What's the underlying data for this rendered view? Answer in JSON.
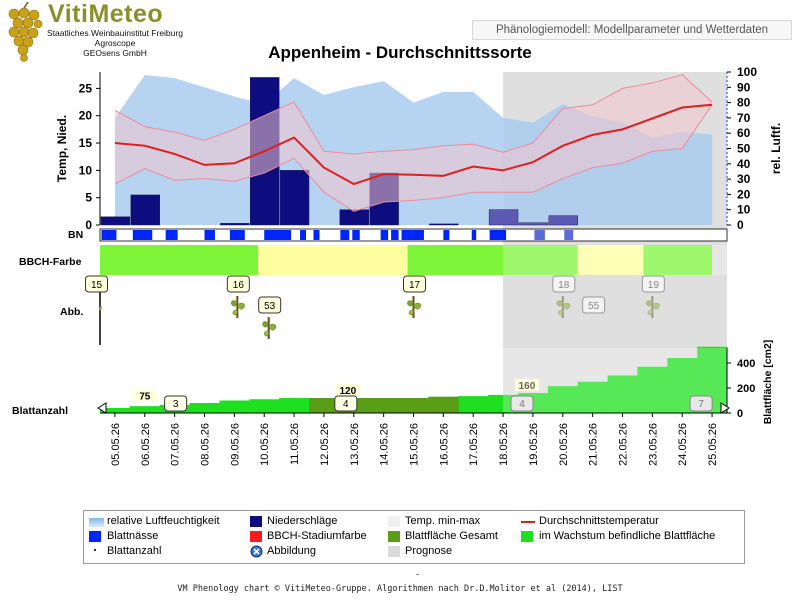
{
  "header": {
    "logo_title": "VitiMeteo",
    "logo_lines": [
      "Staatliches Weinbauinstitut Freiburg",
      "Agroscope",
      "GEOsens GmbH"
    ],
    "tab_label": "Phänologiemodell: Modellparameter und Wetterdaten"
  },
  "footer": {
    "dash": "-",
    "credit": "VM Phenology chart © VitiMeteo-Gruppe. Algorithmen nach Dr.D.Molitor et al (2014), LIST"
  },
  "colors": {
    "humidity": "#a9cdf0",
    "precip": "#0d0d80",
    "precip_forecast": "#5c5ab4",
    "temp_band": "#f2c4cc",
    "temp_line": "#e01e1e",
    "bbch_green": "#7ff53a",
    "bbch_yellow": "#ffffa0",
    "leaf_total": "#5a9e18",
    "leaf_growing": "#1ee01e",
    "wetness": "#0026ff",
    "forecast_shade": "#d9d9d9"
  },
  "chart_data": {
    "type": "phenology-combined",
    "title": "Appenheim - Durchschnittssorte",
    "dates": [
      "05.05.26",
      "06.05.26",
      "07.05.26",
      "08.05.26",
      "09.05.26",
      "10.05.26",
      "11.05.26",
      "12.05.26",
      "13.05.26",
      "14.05.26",
      "15.05.26",
      "16.05.26",
      "17.05.26",
      "18.05.26",
      "19.05.26",
      "20.05.26",
      "21.05.26",
      "22.05.26",
      "23.05.26",
      "24.05.26",
      "25.05.26"
    ],
    "forecast_start": "18.05.26",
    "axes": {
      "left": {
        "label": "Temp, Nied.",
        "ylim": [
          0,
          28
        ],
        "ticks": [
          0,
          5,
          10,
          15,
          20,
          25
        ]
      },
      "right": {
        "label": "rel. Luftf.",
        "ylim": [
          0,
          100
        ],
        "ticks": [
          0,
          10,
          20,
          30,
          40,
          50,
          60,
          70,
          80,
          90,
          100
        ]
      },
      "leaf_area": {
        "label": "Blattfläche [cm2]",
        "ticks": [
          0,
          200,
          400
        ]
      }
    },
    "humidity": [
      {
        "x": "05.05.26",
        "y": 70
      },
      {
        "x": "06.05.26",
        "y": 98
      },
      {
        "x": "07.05.26",
        "y": 96
      },
      {
        "x": "08.05.26",
        "y": 90
      },
      {
        "x": "09.05.26",
        "y": 84
      },
      {
        "x": "10.05.26",
        "y": 79
      },
      {
        "x": "11.05.26",
        "y": 96
      },
      {
        "x": "12.05.26",
        "y": 85
      },
      {
        "x": "13.05.26",
        "y": 90
      },
      {
        "x": "14.05.26",
        "y": 94
      },
      {
        "x": "15.05.26",
        "y": 80
      },
      {
        "x": "16.05.26",
        "y": 87
      },
      {
        "x": "17.05.26",
        "y": 87
      },
      {
        "x": "18.05.26",
        "y": 70
      },
      {
        "x": "19.05.26",
        "y": 67
      },
      {
        "x": "20.05.26",
        "y": 79
      },
      {
        "x": "21.05.26",
        "y": 71
      },
      {
        "x": "22.05.26",
        "y": 67
      },
      {
        "x": "23.05.26",
        "y": 57
      },
      {
        "x": "24.05.26",
        "y": 61
      },
      {
        "x": "25.05.26",
        "y": 59
      }
    ],
    "precipitation": [
      {
        "date": "05.05.26",
        "value": 1.5
      },
      {
        "date": "06.05.26",
        "value": 5.5
      },
      {
        "date": "09.05.26",
        "value": 0.3
      },
      {
        "date": "10.05.26",
        "value": 27
      },
      {
        "date": "11.05.26",
        "value": 10
      },
      {
        "date": "13.05.26",
        "value": 2.8
      },
      {
        "date": "14.05.26",
        "value": 9.5
      },
      {
        "date": "16.05.26",
        "value": 0.2
      },
      {
        "date": "18.05.26",
        "value": 2.8
      },
      {
        "date": "19.05.26",
        "value": 0.4
      },
      {
        "date": "20.05.26",
        "value": 1.7
      }
    ],
    "temperature": {
      "mean": [
        15,
        14.5,
        13,
        11,
        11.3,
        13.5,
        16,
        10.5,
        7.5,
        9.3,
        9.2,
        9,
        10.7,
        10,
        11.5,
        14.5,
        16.5,
        17.5,
        19.5,
        21.5,
        22
      ],
      "min": [
        7.5,
        10.3,
        8.2,
        8.5,
        8,
        9.5,
        12.2,
        6,
        2.5,
        4.2,
        4.5,
        5,
        6,
        6,
        6,
        8.5,
        10.5,
        11.3,
        13.5,
        14,
        22
      ],
      "max": [
        21,
        18,
        17,
        15.5,
        17.5,
        20,
        22.5,
        13.5,
        13,
        13.5,
        13.8,
        14.5,
        14.8,
        13.3,
        15,
        21.3,
        22,
        25,
        26,
        27.5,
        22.5
      ]
    },
    "leaf_wetness_label": "BN",
    "leaf_wetness_periods": [
      [
        0.05,
        0.55
      ],
      [
        1.1,
        1.75
      ],
      [
        2.2,
        2.6
      ],
      [
        3.5,
        3.85
      ],
      [
        4.35,
        4.85
      ],
      [
        5.5,
        6.4
      ],
      [
        6.7,
        6.9
      ],
      [
        7.15,
        7.35
      ],
      [
        8.05,
        8.35
      ],
      [
        8.45,
        8.7
      ],
      [
        9.4,
        9.65
      ],
      [
        9.75,
        10.0
      ],
      [
        10.1,
        10.85
      ],
      [
        11.5,
        11.7
      ],
      [
        12.45,
        12.6
      ],
      [
        13.05,
        13.6
      ],
      [
        14.55,
        14.9
      ],
      [
        15.55,
        15.85
      ]
    ],
    "bbch_label": "BBCH-Farbe",
    "bbch_segments": [
      {
        "from": 0,
        "to": 5.3,
        "color": "bbch_green"
      },
      {
        "from": 5.3,
        "to": 10.3,
        "color": "bbch_yellow"
      },
      {
        "from": 10.3,
        "to": 16.0,
        "color": "bbch_green"
      },
      {
        "from": 16.0,
        "to": 18.2,
        "color": "bbch_yellow"
      },
      {
        "from": 18.2,
        "to": 20.5,
        "color": "bbch_green"
      }
    ],
    "stages_label": "Abb.",
    "stages": [
      {
        "label": "15",
        "x": -0.15,
        "level": "top",
        "illustration": false
      },
      {
        "label": "16",
        "x": 4.6,
        "level": "top",
        "illustration": true
      },
      {
        "label": "53",
        "x": 5.65,
        "level": "mid",
        "illustration": true
      },
      {
        "label": "17",
        "x": 10.5,
        "level": "top",
        "illustration": true
      },
      {
        "label": "18",
        "x": 15.5,
        "level": "top",
        "illustration": true
      },
      {
        "label": "55",
        "x": 16.5,
        "level": "mid",
        "illustration": false
      },
      {
        "label": "19",
        "x": 18.5,
        "level": "top",
        "illustration": true
      }
    ],
    "leaf_count_label": "Blattanzahl",
    "leaf_total_area": [
      40,
      55,
      65,
      80,
      100,
      110,
      120,
      120,
      120,
      120,
      120,
      130,
      135,
      145,
      160,
      215,
      250,
      300,
      370,
      440,
      530
    ],
    "leaf_growing_steps": [
      {
        "from": 0,
        "to": 7,
        "value": "growing"
      },
      {
        "from": 7,
        "to": 12,
        "value": "total"
      },
      {
        "from": 12,
        "to": 20.5,
        "value": "growing"
      }
    ],
    "leaf_area_labels": [
      {
        "label": "75",
        "x": 1.5,
        "y": 75
      },
      {
        "label": "120",
        "x": 8.3,
        "y": 120
      },
      {
        "label": "160",
        "x": 14.3,
        "y": 160
      }
    ],
    "leaf_count_markers": [
      {
        "label": "3",
        "x": 2.5
      },
      {
        "label": "4",
        "x": 8.2
      },
      {
        "label": "4",
        "x": 14.1
      },
      {
        "label": "7",
        "x": 20.1
      }
    ],
    "legend": [
      {
        "label": "relative Luftfeuchtigkeit",
        "swatch": "gradient-blue"
      },
      {
        "label": "Niederschläge",
        "swatch": "navy"
      },
      {
        "label": "Temp. min-max",
        "swatch": "band"
      },
      {
        "label": "Durchschnittstemperatur",
        "swatch": "redline"
      },
      {
        "label": "Blattnässe",
        "swatch": "blue"
      },
      {
        "label": "BBCH-Stadiumfarbe",
        "swatch": "red"
      },
      {
        "label": "Blattfläche Gesamt",
        "swatch": "olive"
      },
      {
        "label": "im Wachstum befindliche Blattfläche",
        "swatch": "green"
      },
      {
        "label": "Blattanzahl",
        "swatch": "dot"
      },
      {
        "label": "Abbildung",
        "swatch": "circle-x"
      },
      {
        "label": "Prognose",
        "swatch": "grey"
      }
    ]
  }
}
